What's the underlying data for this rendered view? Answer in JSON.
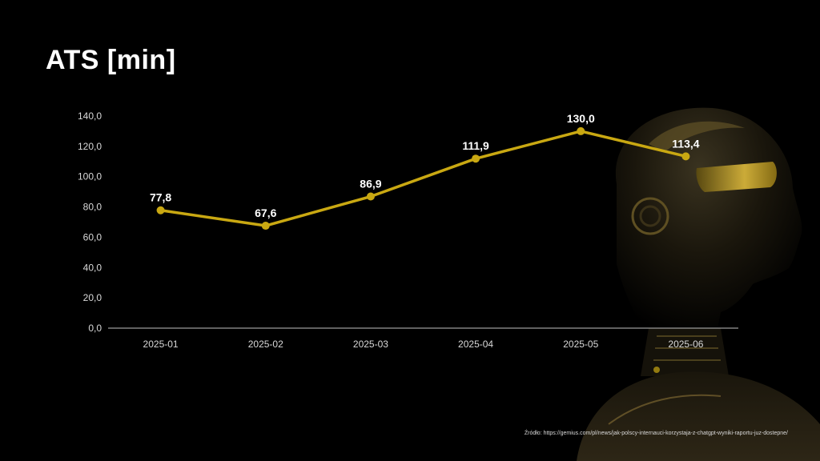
{
  "slide": {
    "title": "ATS [min]",
    "source": "Źródło: https://gemius.com/pl/news/jak-polscy-internauci-korzystaja-z-chatgpt-wyniki-raportu-juz-dostepne/"
  },
  "colors": {
    "background": "#000000",
    "line": "#c9a812",
    "text": "#ffffff",
    "tick_text": "#d9d9d9",
    "axis": "#bfbfbf"
  },
  "chart_data": {
    "type": "line",
    "title": "",
    "xlabel": "",
    "ylabel": "",
    "categories": [
      "2025-01",
      "2025-02",
      "2025-03",
      "2025-04",
      "2025-05",
      "2025-06"
    ],
    "values": [
      77.8,
      67.6,
      86.9,
      111.9,
      130.0,
      113.4
    ],
    "data_labels": [
      "77,8",
      "67,6",
      "86,9",
      "111,9",
      "130,0",
      "113,4"
    ],
    "ylim": [
      0,
      140
    ],
    "yticks": [
      "0,0",
      "20,0",
      "40,0",
      "60,0",
      "80,0",
      "100,0",
      "120,0",
      "140,0"
    ],
    "grid": false,
    "legend": "none"
  }
}
